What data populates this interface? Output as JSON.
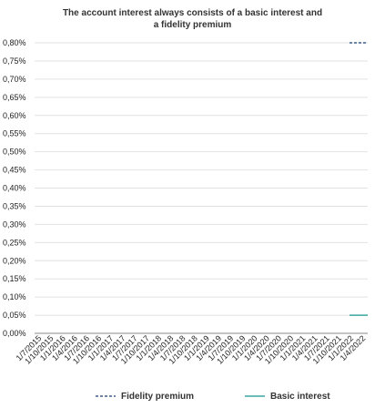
{
  "chart_data": {
    "type": "line",
    "title_lines": [
      "The account interest always consists of a basic interest and",
      "a fidelity premium"
    ],
    "x": [
      "1/7/2015",
      "1/10/2015",
      "1/1/2016",
      "1/4/2016",
      "1/7/2016",
      "1/10/2016",
      "1/1/2017",
      "1/4/2017",
      "1/7/2017",
      "1/10/2017",
      "1/1/2018",
      "1/4/2018",
      "1/7/2018",
      "1/10/2018",
      "1/1/2019",
      "1/4/2019",
      "1/7/2019",
      "1/10/2019",
      "1/1/2020",
      "1/4/2020",
      "1/7/2020",
      "1/10/2020",
      "1/1/2021",
      "1/4/2021",
      "1/7/2021",
      "1/10/2021",
      "1/1/2022",
      "1/4/2022"
    ],
    "x_tick_labels": [
      "1/7/2015",
      "1/10/2015",
      "1/1/2016",
      "1/4/2016",
      "1/7/2016",
      "1/10/2016",
      "1/1/2017",
      "1/4/2017",
      "1/7/2017",
      "1/10/2017",
      "1/1/2018",
      "1/4/2018",
      "1/7/2018",
      "1/10/2018",
      "1/1/2019",
      "1/4/2019",
      "1/7/2019",
      "1/10/2019",
      "1/1/2020",
      "1/4/2020",
      "1/7/2020",
      "1/10/2020",
      "1/1/2021",
      "1/4/2021",
      "1/7/2021",
      "1/10/2021",
      "1/1/2022",
      "1/4/2022"
    ],
    "y_tick_labels": [
      "0,00%",
      "0,05%",
      "0,10%",
      "0,15%",
      "0,20%",
      "0,25%",
      "0,30%",
      "0,35%",
      "0,40%",
      "0,45%",
      "0,50%",
      "0,55%",
      "0,60%",
      "0,65%",
      "0,70%",
      "0,75%",
      "0,80%"
    ],
    "ylim": [
      0,
      0.8
    ],
    "series": [
      {
        "name": "Fidelity premium",
        "color": "#3f5e8c",
        "dash": "dashed",
        "values": [
          null,
          null,
          null,
          null,
          null,
          null,
          null,
          null,
          null,
          null,
          null,
          null,
          null,
          null,
          null,
          null,
          null,
          null,
          null,
          null,
          null,
          null,
          null,
          null,
          null,
          null,
          null,
          0.8
        ]
      },
      {
        "name": "Basic interest",
        "color": "#3aa9a0",
        "dash": "solid",
        "values": [
          null,
          null,
          null,
          null,
          null,
          null,
          null,
          null,
          null,
          null,
          null,
          null,
          null,
          null,
          null,
          null,
          null,
          null,
          null,
          null,
          null,
          null,
          null,
          null,
          null,
          null,
          null,
          0.05
        ]
      }
    ],
    "grid": true,
    "legend_position": "bottom"
  }
}
